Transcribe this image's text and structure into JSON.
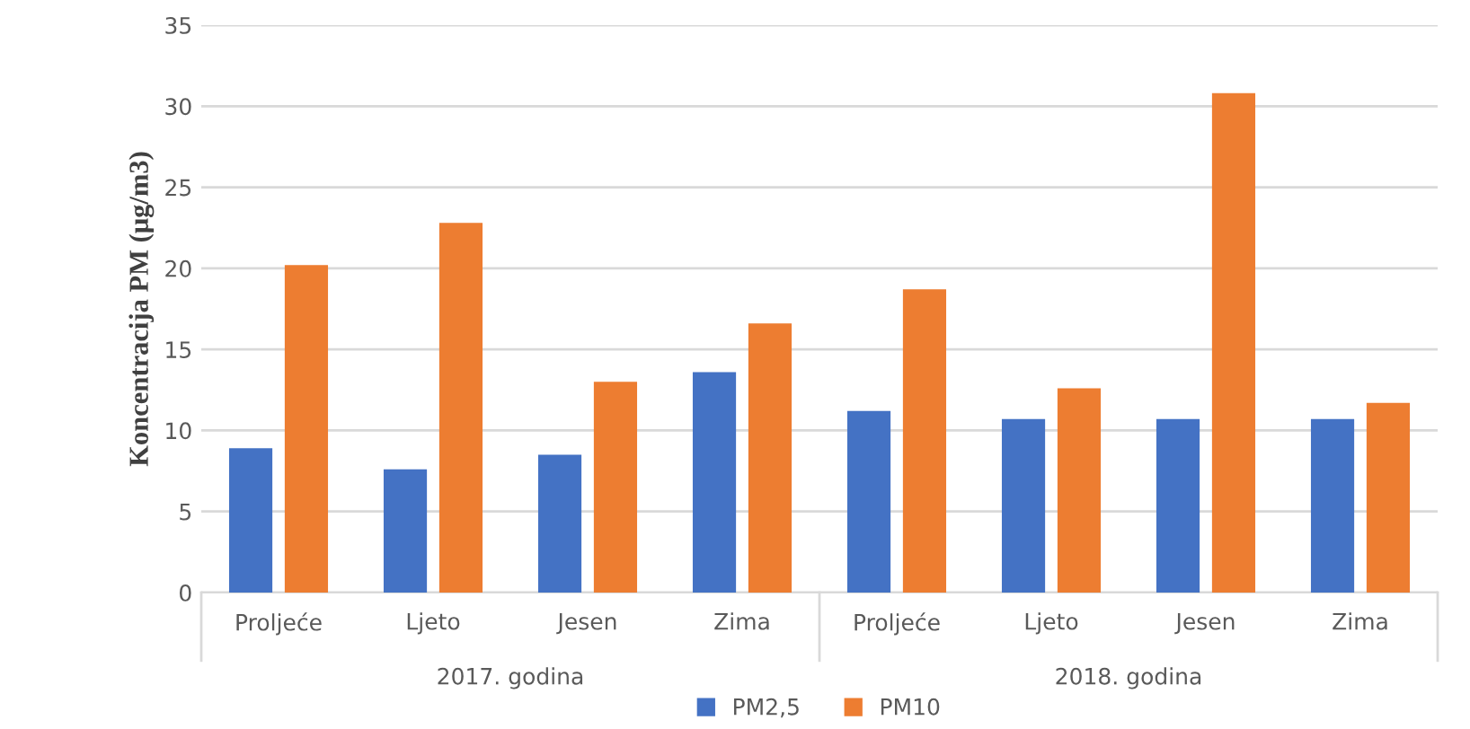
{
  "chart_data": {
    "type": "bar",
    "ylabel": "Koncentracija PM (μg/m3)",
    "categories": [
      "Proljeće",
      "Ljeto",
      "Jesen",
      "Zima",
      "Proljeće",
      "Ljeto",
      "Jesen",
      "Zima"
    ],
    "series": [
      {
        "name": "PM2,5",
        "color": "#4472c4",
        "values": [
          8.9,
          7.6,
          8.5,
          13.6,
          11.2,
          10.7,
          10.7,
          10.7
        ]
      },
      {
        "name": "PM10",
        "color": "#ed7d31",
        "values": [
          20.2,
          22.8,
          13.0,
          16.6,
          18.7,
          12.6,
          30.8,
          11.7
        ]
      }
    ],
    "annotations": [
      "2017. godina",
      "2018. godina"
    ],
    "ylim": [
      0,
      35
    ],
    "yticks": [
      0,
      5,
      10,
      15,
      20,
      25,
      30,
      35
    ],
    "grid": "y",
    "legend": "bottom"
  }
}
